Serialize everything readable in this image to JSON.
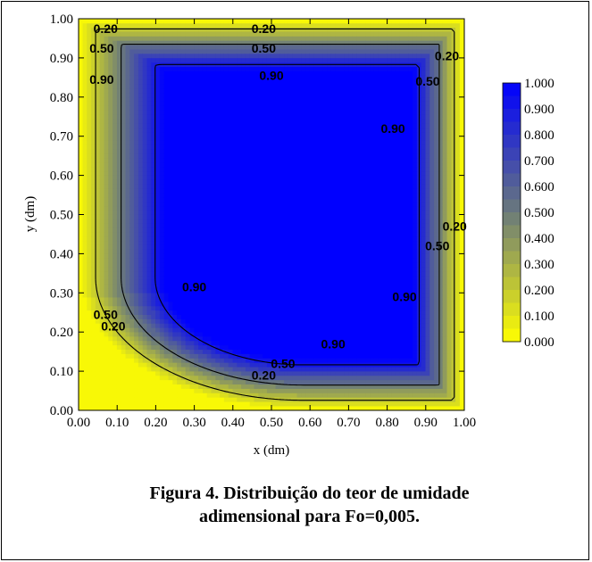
{
  "chart_data": {
    "type": "heatmap",
    "subtype": "filled-contour",
    "xlabel": "x (dm)",
    "ylabel": "y (dm)",
    "xlim": [
      0,
      1
    ],
    "ylim": [
      0,
      1
    ],
    "x_ticks": [
      "0.00",
      "0.10",
      "0.20",
      "0.30",
      "0.40",
      "0.50",
      "0.60",
      "0.70",
      "0.80",
      "0.90",
      "1.00"
    ],
    "y_ticks": [
      "0.00",
      "0.10",
      "0.20",
      "0.30",
      "0.40",
      "0.50",
      "0.60",
      "0.70",
      "0.80",
      "0.90",
      "1.00"
    ],
    "colorbar": {
      "levels": [
        "1.000",
        "0.900",
        "0.800",
        "0.700",
        "0.600",
        "0.500",
        "0.400",
        "0.300",
        "0.200",
        "0.100",
        "0.000"
      ],
      "low_color": "#ffff00",
      "mid_color": "#6b7a7a",
      "high_color": "#0000ff"
    },
    "contour_levels": [
      0.2,
      0.5,
      0.9
    ],
    "contour_labels": [
      {
        "text": "0.20",
        "x": 0.07,
        "y": 0.975
      },
      {
        "text": "0.20",
        "x": 0.48,
        "y": 0.975
      },
      {
        "text": "0.50",
        "x": 0.06,
        "y": 0.925
      },
      {
        "text": "0.50",
        "x": 0.48,
        "y": 0.925
      },
      {
        "text": "0.90",
        "x": 0.06,
        "y": 0.845
      },
      {
        "text": "0.90",
        "x": 0.5,
        "y": 0.855
      },
      {
        "text": "0.20",
        "x": 0.955,
        "y": 0.905
      },
      {
        "text": "0.50",
        "x": 0.905,
        "y": 0.84
      },
      {
        "text": "0.90",
        "x": 0.815,
        "y": 0.72
      },
      {
        "text": "0.20",
        "x": 0.975,
        "y": 0.47
      },
      {
        "text": "0.50",
        "x": 0.93,
        "y": 0.42
      },
      {
        "text": "0.90",
        "x": 0.845,
        "y": 0.29
      },
      {
        "text": "0.90",
        "x": 0.3,
        "y": 0.315
      },
      {
        "text": "0.50",
        "x": 0.07,
        "y": 0.245
      },
      {
        "text": "0.20",
        "x": 0.09,
        "y": 0.215
      },
      {
        "text": "0.90",
        "x": 0.66,
        "y": 0.17
      },
      {
        "text": "0.50",
        "x": 0.53,
        "y": 0.12
      },
      {
        "text": "0.20",
        "x": 0.48,
        "y": 0.09
      }
    ]
  },
  "caption": {
    "line1": "Figura 4. Distribuição do teor de umidade",
    "line2": "adimensional para Fo=0,005."
  }
}
